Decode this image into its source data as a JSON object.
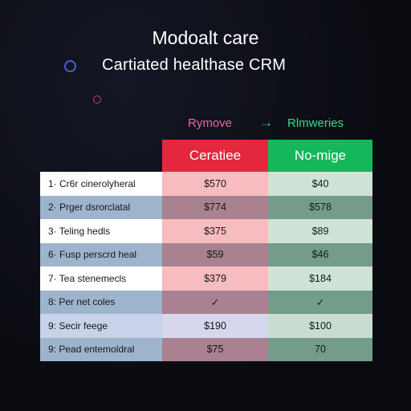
{
  "header": {
    "title": "Modoalt care",
    "subtitle": "Cartiated healthase CRM"
  },
  "compare": {
    "left_label": "Rymove",
    "arrow": "→",
    "right_label": "Rlmweries"
  },
  "table": {
    "columns": [
      "Ceratiee",
      "No-mige"
    ],
    "rows": [
      {
        "name": "1· Cr6r cinerolyheral",
        "a": "$570",
        "b": "$40"
      },
      {
        "name": "2· Prger dsrorclatal",
        "a": "$774",
        "b": "$578"
      },
      {
        "name": "3· Teling hedls",
        "a": "$375",
        "b": "$89"
      },
      {
        "name": "6· Fusp perscrd heal",
        "a": "$59",
        "b": "$46"
      },
      {
        "name": "7· Tea stenemecls",
        "a": "$379",
        "b": "$184"
      },
      {
        "name": "8: Per net coles",
        "a": "✓",
        "b": "✓"
      },
      {
        "name": "9: Secir feege",
        "a": "$190",
        "b": "$100"
      },
      {
        "name": "9: Pead entemoldral",
        "a": "$75",
        "b": "70"
      }
    ]
  },
  "colors": {
    "background": "#0b0c12",
    "header_left": "#e3283e",
    "header_right": "#14b85a",
    "compare_left": "#ea6aa0",
    "compare_right": "#39d98a",
    "ring_blue": "#4a5fc8",
    "ring_red": "#c0405c"
  }
}
